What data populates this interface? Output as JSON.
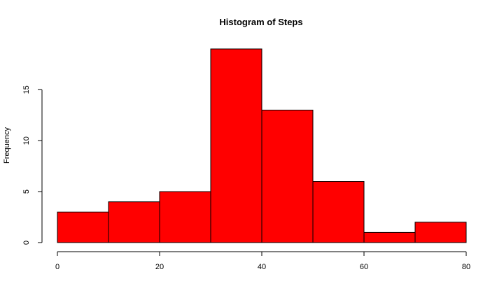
{
  "chart_data": {
    "type": "bar",
    "title": "Histogram of Steps",
    "xlabel": "",
    "ylabel": "Frequency",
    "bins": [
      {
        "x0": 0,
        "x1": 10,
        "count": 3
      },
      {
        "x0": 10,
        "x1": 20,
        "count": 4
      },
      {
        "x0": 20,
        "x1": 30,
        "count": 5
      },
      {
        "x0": 30,
        "x1": 40,
        "count": 19
      },
      {
        "x0": 40,
        "x1": 50,
        "count": 13
      },
      {
        "x0": 50,
        "x1": 60,
        "count": 6
      },
      {
        "x0": 60,
        "x1": 70,
        "count": 1
      },
      {
        "x0": 70,
        "x1": 80,
        "count": 2
      }
    ],
    "xlim": [
      0,
      80
    ],
    "ylim": [
      0,
      19
    ],
    "x_ticks": [
      0,
      20,
      40,
      60,
      80
    ],
    "y_ticks": [
      0,
      5,
      10,
      15
    ],
    "bar_color": "#ff0000",
    "grid": false,
    "legend": "none"
  }
}
